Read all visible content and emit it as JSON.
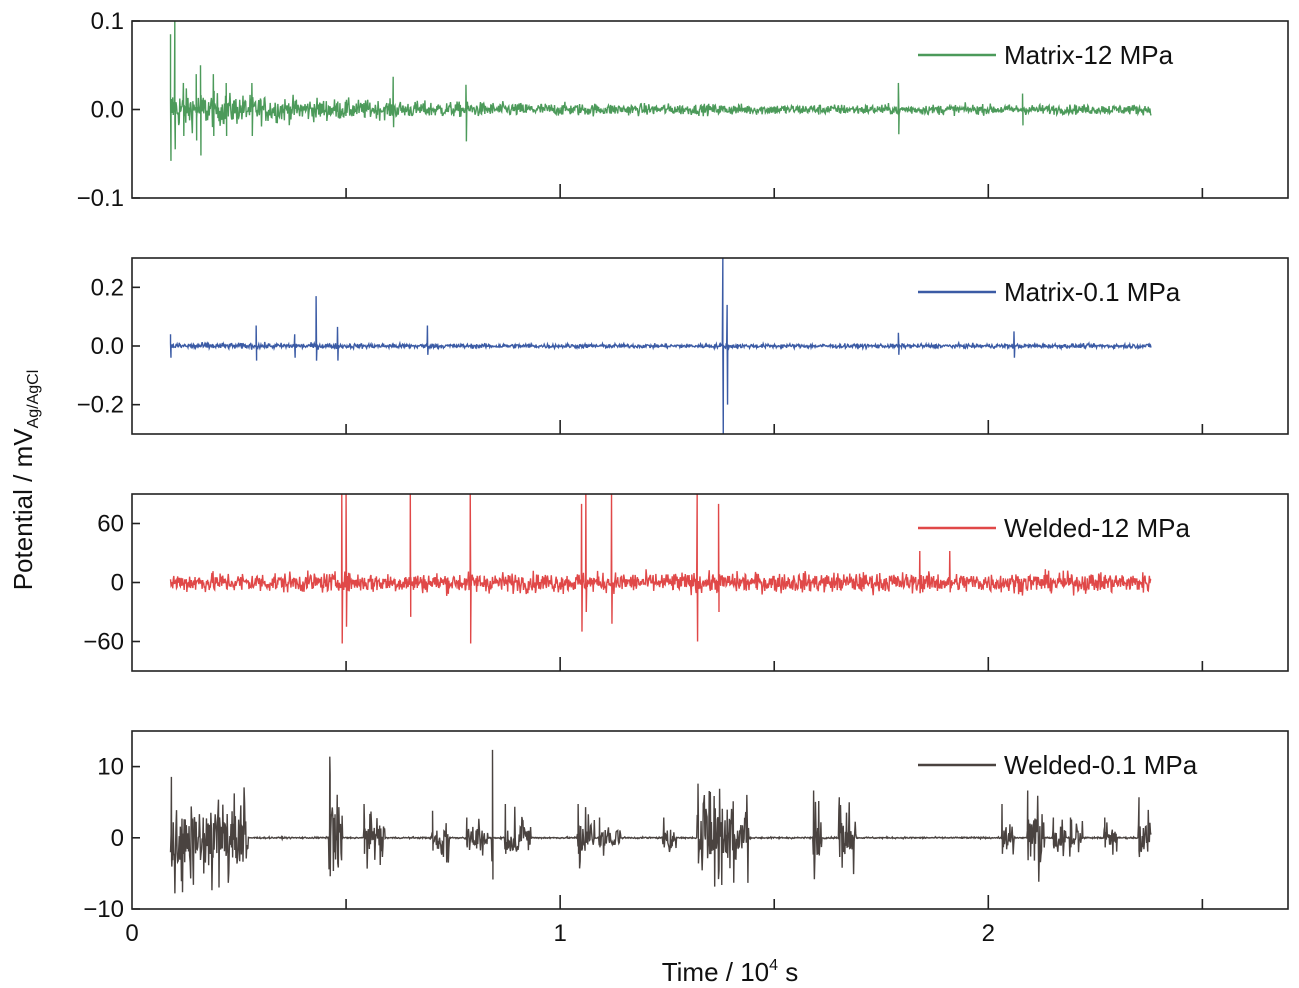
{
  "chart_data": {
    "type": "line",
    "xlabel": "Time / 10",
    "xlabel_sup": "4",
    "xlabel_unit": " s",
    "ylabel": "Potential / mV",
    "ylabel_sub": "Ag/AgCl",
    "x_ticks": [
      "0",
      "1",
      "2"
    ],
    "xlim": [
      0,
      2.7
    ],
    "x_range": [
      0.09,
      2.38
    ],
    "panels": [
      {
        "name": "Matrix-12 MPa",
        "color": "#4c9a5a",
        "ylim": [
          -0.1,
          0.1
        ],
        "yticks": [
          0.1,
          0.0,
          -0.1
        ],
        "ytick_labels": [
          "0.1",
          "0.0",
          "−0.1"
        ],
        "baseline": 0.0,
        "noise_start": 0.025,
        "noise_end": 0.006,
        "spikes": [
          {
            "x": 0.09,
            "min": -0.058,
            "max": 0.085
          },
          {
            "x": 0.1,
            "min": -0.045,
            "max": 0.1
          },
          {
            "x": 0.12,
            "min": -0.03,
            "max": 0.03
          },
          {
            "x": 0.15,
            "min": -0.035,
            "max": 0.04
          },
          {
            "x": 0.16,
            "min": -0.052,
            "max": 0.05
          },
          {
            "x": 0.19,
            "min": -0.03,
            "max": 0.04
          },
          {
            "x": 0.22,
            "min": -0.03,
            "max": 0.03
          },
          {
            "x": 0.28,
            "min": -0.03,
            "max": 0.03
          },
          {
            "x": 0.61,
            "min": -0.02,
            "max": 0.037
          },
          {
            "x": 0.78,
            "min": -0.036,
            "max": 0.028
          },
          {
            "x": 1.79,
            "min": -0.028,
            "max": 0.03
          },
          {
            "x": 2.08,
            "min": -0.018,
            "max": 0.018
          }
        ]
      },
      {
        "name": "Matrix-0.1 MPa",
        "color": "#3b5ba5",
        "ylim": [
          -0.3,
          0.3
        ],
        "yticks": [
          0.2,
          0.0,
          -0.2
        ],
        "ytick_labels": [
          "0.2",
          "0.0",
          "−0.2"
        ],
        "baseline": 0.0,
        "noise_start": 0.012,
        "noise_end": 0.008,
        "spikes": [
          {
            "x": 0.09,
            "min": -0.04,
            "max": 0.04
          },
          {
            "x": 0.29,
            "min": -0.05,
            "max": 0.07
          },
          {
            "x": 0.38,
            "min": -0.04,
            "max": 0.04
          },
          {
            "x": 0.43,
            "min": -0.05,
            "max": 0.17
          },
          {
            "x": 0.48,
            "min": -0.05,
            "max": 0.065
          },
          {
            "x": 0.69,
            "min": -0.03,
            "max": 0.07
          },
          {
            "x": 1.38,
            "min": -0.3,
            "max": 0.3
          },
          {
            "x": 1.39,
            "min": -0.2,
            "max": 0.14
          },
          {
            "x": 1.79,
            "min": -0.03,
            "max": 0.045
          },
          {
            "x": 2.06,
            "min": -0.04,
            "max": 0.05
          }
        ]
      },
      {
        "name": "Welded-12 MPa",
        "color": "#e04848",
        "ylim": [
          -90,
          90
        ],
        "yticks": [
          60,
          0,
          -60
        ],
        "ytick_labels": [
          "60",
          "0",
          "−60"
        ],
        "baseline": 0,
        "noise_start": 11,
        "noise_end": 11,
        "spikes": [
          {
            "x": 0.49,
            "min": -62,
            "max": 90
          },
          {
            "x": 0.5,
            "min": -45,
            "max": 90
          },
          {
            "x": 0.65,
            "min": -35,
            "max": 90
          },
          {
            "x": 0.79,
            "min": -62,
            "max": 90
          },
          {
            "x": 1.05,
            "min": -50,
            "max": 80
          },
          {
            "x": 1.06,
            "min": -30,
            "max": 90
          },
          {
            "x": 1.12,
            "min": -42,
            "max": 90
          },
          {
            "x": 1.32,
            "min": -60,
            "max": 90
          },
          {
            "x": 1.37,
            "min": -30,
            "max": 80
          },
          {
            "x": 1.84,
            "min": -10,
            "max": 32
          },
          {
            "x": 1.91,
            "min": -10,
            "max": 32
          }
        ]
      },
      {
        "name": "Welded-0.1 MPa",
        "color": "#4a4340",
        "ylim": [
          -10,
          15
        ],
        "yticks": [
          10,
          0,
          -10
        ],
        "ytick_labels": [
          "10",
          "0",
          "−10"
        ],
        "baseline": 0,
        "noise_start": 0.12,
        "noise_end": 0.12,
        "bursts": [
          [
            0.09,
            0.27,
            9
          ],
          [
            0.46,
            0.49,
            12
          ],
          [
            0.54,
            0.59,
            5
          ],
          [
            0.7,
            0.74,
            4
          ],
          [
            0.78,
            0.83,
            3
          ],
          [
            0.84,
            0.84,
            13
          ],
          [
            0.87,
            0.93,
            5
          ],
          [
            1.04,
            1.08,
            5
          ],
          [
            1.09,
            1.14,
            3
          ],
          [
            1.24,
            1.27,
            3
          ],
          [
            1.32,
            1.44,
            8
          ],
          [
            1.59,
            1.61,
            7
          ],
          [
            1.65,
            1.69,
            6
          ],
          [
            2.03,
            2.06,
            5
          ],
          [
            2.09,
            2.13,
            7
          ],
          [
            2.15,
            2.18,
            3
          ],
          [
            2.19,
            2.22,
            3
          ],
          [
            2.27,
            2.3,
            3
          ],
          [
            2.35,
            2.38,
            6
          ]
        ]
      }
    ]
  }
}
